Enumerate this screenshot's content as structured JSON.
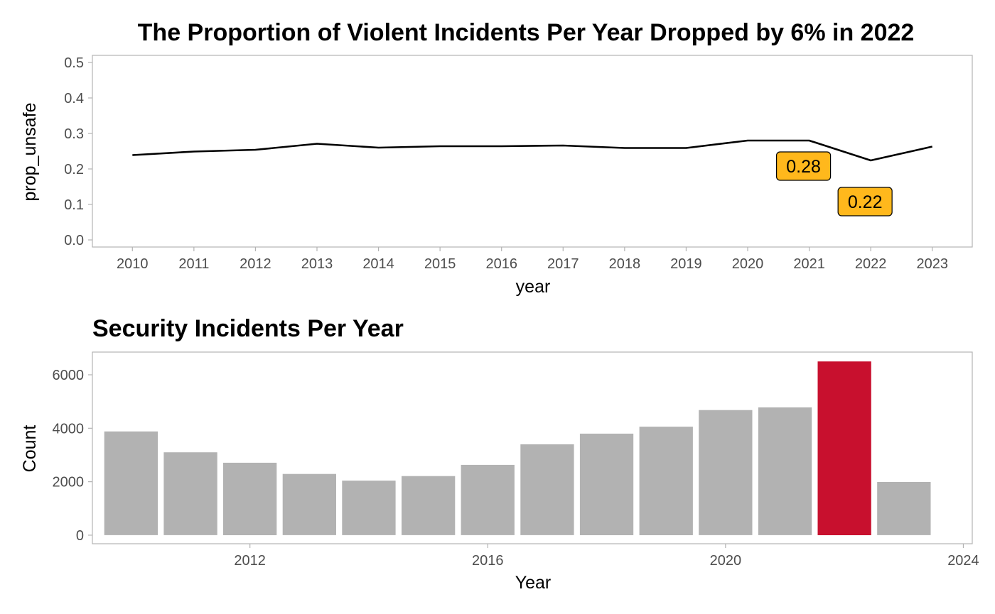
{
  "colors": {
    "panel_border": "#b3b3b3",
    "tick": "#4d4d4d",
    "line": "#000000",
    "label_fill": "#ffb81c",
    "bar_default": "#b2b2b2",
    "bar_highlight": "#c8102e"
  },
  "chart_data": [
    {
      "type": "line",
      "title": "The Proportion of Violent Incidents Per Year Dropped by 6% in 2022",
      "xlabel": "year",
      "ylabel": "prop_unsafe",
      "x": [
        2010,
        2011,
        2012,
        2013,
        2014,
        2015,
        2016,
        2017,
        2018,
        2019,
        2020,
        2021,
        2022,
        2023
      ],
      "y": [
        0.239,
        0.249,
        0.254,
        0.271,
        0.26,
        0.264,
        0.264,
        0.266,
        0.259,
        0.259,
        0.28,
        0.28,
        0.224,
        0.263
      ],
      "xlim": [
        2009.35,
        2023.65
      ],
      "ylim": [
        -0.02,
        0.52
      ],
      "yticks": [
        "0.0",
        "0.1",
        "0.2",
        "0.3",
        "0.4",
        "0.5"
      ],
      "xticks": [
        "2010",
        "2011",
        "2012",
        "2013",
        "2014",
        "2015",
        "2016",
        "2017",
        "2018",
        "2019",
        "2020",
        "2021",
        "2022",
        "2023"
      ],
      "annotations": [
        {
          "x": 2021,
          "y": 0.28,
          "label": "0.28"
        },
        {
          "x": 2022,
          "y": 0.22,
          "label": "0.22"
        }
      ],
      "grid": false
    },
    {
      "type": "bar",
      "title": "Security Incidents Per Year",
      "xlabel": "Year",
      "ylabel": "Count",
      "x": [
        2010,
        2011,
        2012,
        2013,
        2014,
        2015,
        2016,
        2017,
        2018,
        2019,
        2020,
        2021,
        2022,
        2023
      ],
      "values": [
        3880,
        3100,
        2710,
        2290,
        2040,
        2210,
        2630,
        3400,
        3800,
        4060,
        4680,
        4780,
        6500,
        1990
      ],
      "highlight": [
        2022
      ],
      "xlim": [
        2009.35,
        2024.15
      ],
      "ylim": [
        -320,
        6850
      ],
      "yticks": [
        "0",
        "2000",
        "4000",
        "6000"
      ],
      "xticks": [
        "2012",
        "2016",
        "2020",
        "2024"
      ],
      "grid": false
    }
  ]
}
